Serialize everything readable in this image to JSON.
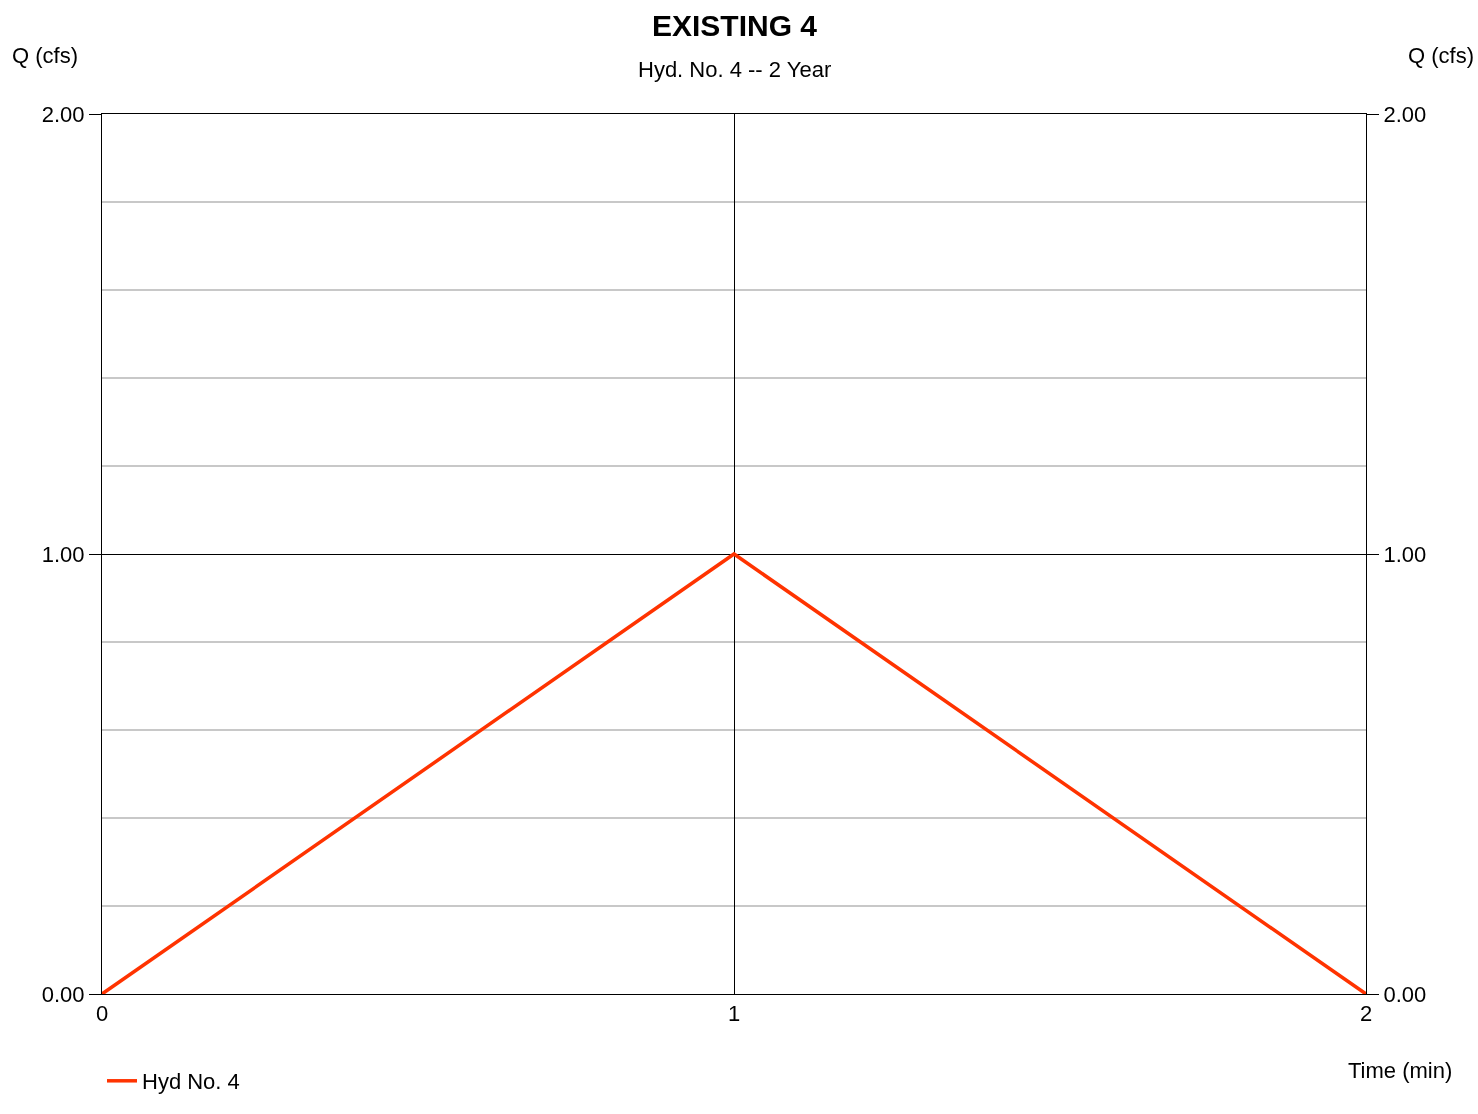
{
  "chart_data": {
    "type": "line",
    "title": "EXISTING 4",
    "subtitle": "Hyd. No. 4 -- 2 Year",
    "xlabel": "Time (min)",
    "ylabel": "Q (cfs)",
    "y2label": "Q (cfs)",
    "x": [
      0,
      1,
      2
    ],
    "xlim": [
      0,
      2
    ],
    "xticks": [
      0,
      1,
      2
    ],
    "ylim": [
      0,
      2
    ],
    "yticks": [
      {
        "value": 0,
        "label": "0.00"
      },
      {
        "value": 0.2,
        "label": null
      },
      {
        "value": 0.4,
        "label": null
      },
      {
        "value": 0.6,
        "label": null
      },
      {
        "value": 0.8,
        "label": null
      },
      {
        "value": 1,
        "label": "1.00"
      },
      {
        "value": 1.2,
        "label": null
      },
      {
        "value": 1.4,
        "label": null
      },
      {
        "value": 1.6,
        "label": null
      },
      {
        "value": 1.8,
        "label": null
      },
      {
        "value": 2,
        "label": "2.00"
      }
    ],
    "y2lim": [
      0,
      2
    ],
    "y2ticks": [
      {
        "value": 0,
        "label": "0.00"
      },
      {
        "value": 1,
        "label": "1.00"
      },
      {
        "value": 2,
        "label": "2.00"
      }
    ],
    "series": [
      {
        "name": "Hyd No. 4",
        "color": "#ff3300",
        "values": [
          0,
          1,
          0
        ]
      }
    ],
    "grid": true,
    "legend": "bottom left",
    "marker": "none",
    "line_style": "solid"
  }
}
